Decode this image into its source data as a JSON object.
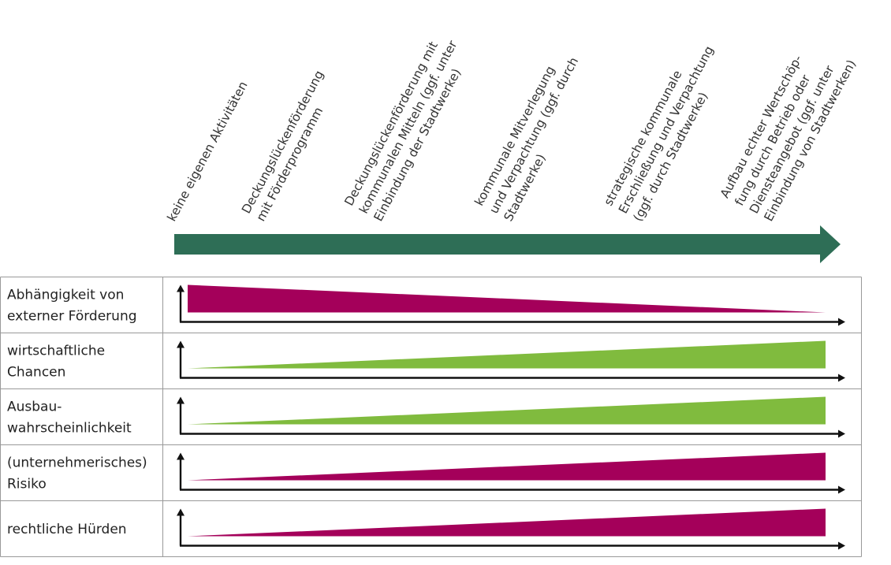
{
  "stages": [
    {
      "lines": [
        "keine eigenen Aktivitäten"
      ]
    },
    {
      "lines": [
        "Deckungslückenförderung",
        "mit Förderprogramm"
      ]
    },
    {
      "lines": [
        "Deckungslückenförderung mit",
        "kommunalen Mitteln (ggf. unter",
        "Einbindung der Stadtwerke)"
      ]
    },
    {
      "lines": [
        "kommunale Mitverlegung",
        "und Verpachtung (ggf. durch",
        "Stadtwerke)"
      ]
    },
    {
      "lines": [
        "strategische kommunale",
        "Erschließung und Verpachtung",
        "(ggf. durch Stadtwerke)"
      ]
    },
    {
      "lines": [
        "Aufbau echter Wertschöp-",
        "fung durch Betrieb oder",
        "Diensteangebot (ggf. unter",
        "Einbindung von Stadtwerken)"
      ]
    }
  ],
  "rows": [
    {
      "label_lines": [
        "Abhängigkeit von",
        "externer Förderung"
      ],
      "trend": "decreasing",
      "start_level": 1.0,
      "end_level": 0.0,
      "color": "#a4005a"
    },
    {
      "label_lines": [
        "wirtschaftliche",
        "Chancen"
      ],
      "trend": "increasing",
      "start_level": 0.0,
      "end_level": 1.0,
      "color": "#80bb3e"
    },
    {
      "label_lines": [
        "Ausbau-",
        "wahrscheinlichkeit"
      ],
      "trend": "increasing",
      "start_level": 0.0,
      "end_level": 1.0,
      "color": "#80bb3e"
    },
    {
      "label_lines": [
        "(unternehmerisches)",
        "Risiko"
      ],
      "trend": "increasing",
      "start_level": 0.0,
      "end_level": 1.0,
      "color": "#a4005a"
    },
    {
      "label_lines": [
        "rechtliche Hürden"
      ],
      "trend": "increasing",
      "start_level": 0.0,
      "end_level": 1.0,
      "color": "#a4005a"
    }
  ],
  "colors": {
    "main_arrow": "#2e6e56",
    "axis": "#111111",
    "grid": "#999999"
  }
}
